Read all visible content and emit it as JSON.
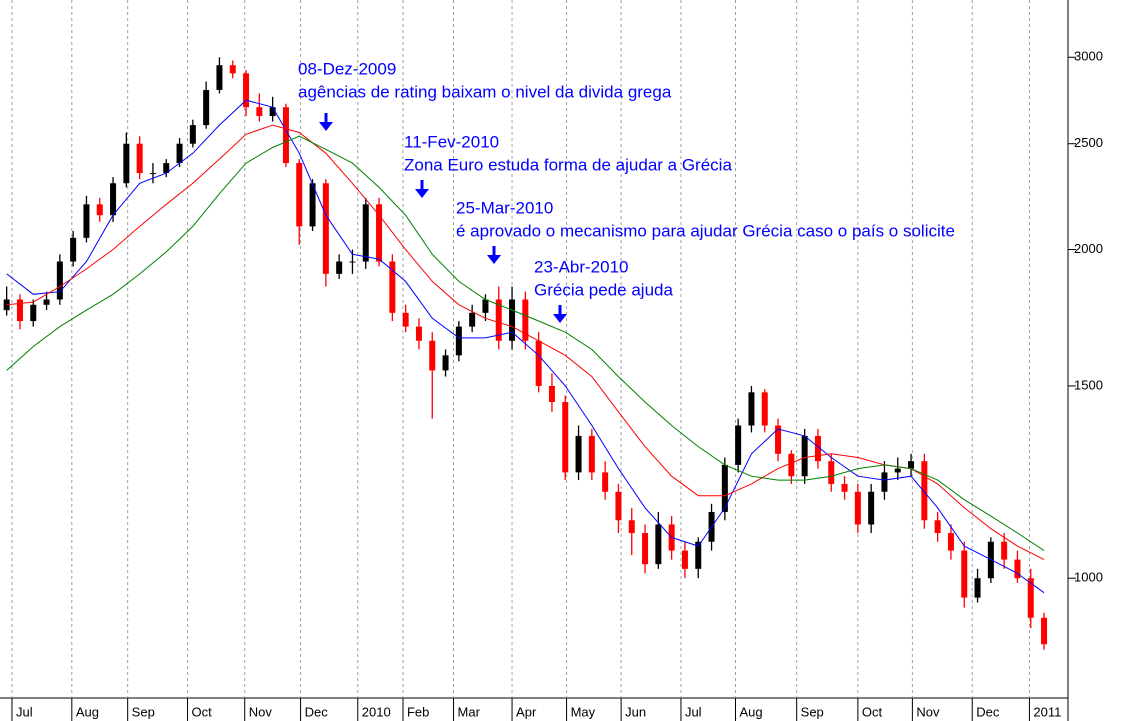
{
  "chart_data": {
    "type": "candlestick",
    "x": [
      0,
      1,
      2,
      3,
      4,
      5,
      6,
      7,
      8,
      9,
      10,
      11,
      12,
      13,
      14,
      15,
      16,
      17,
      18,
      19,
      20,
      21,
      22,
      23,
      24,
      25,
      26,
      27,
      28,
      29,
      30,
      31,
      32,
      33,
      34,
      35,
      36,
      37,
      38,
      39,
      40,
      41,
      42,
      43,
      44,
      45,
      46,
      47,
      48,
      49,
      50,
      51,
      52,
      53,
      54,
      55,
      56,
      57,
      58,
      59,
      60,
      61,
      62,
      63,
      64,
      65,
      66,
      67,
      68,
      69,
      70,
      71,
      72,
      73,
      74,
      75,
      76,
      77,
      78
    ],
    "open": [
      1760,
      1800,
      1720,
      1780,
      1800,
      1950,
      2050,
      2200,
      2150,
      2300,
      2500,
      2350,
      2350,
      2400,
      2500,
      2600,
      2800,
      2950,
      2900,
      2700,
      2650,
      2700,
      2400,
      2100,
      2300,
      1900,
      1950,
      1950,
      2200,
      1950,
      1750,
      1700,
      1650,
      1550,
      1600,
      1700,
      1750,
      1800,
      1650,
      1800,
      1650,
      1500,
      1450,
      1250,
      1350,
      1250,
      1200,
      1130,
      1100,
      1030,
      1120,
      1060,
      1020,
      1080,
      1150,
      1270,
      1380,
      1480,
      1380,
      1300,
      1240,
      1350,
      1280,
      1220,
      1200,
      1120,
      1200,
      1250,
      1260,
      1280,
      1130,
      1100,
      1060,
      960,
      1000,
      1080,
      1040,
      1000,
      920
    ],
    "high": [
      1850,
      1820,
      1800,
      1830,
      1980,
      2080,
      2240,
      2230,
      2330,
      2560,
      2540,
      2400,
      2420,
      2530,
      2630,
      2850,
      3000,
      2980,
      2920,
      2780,
      2760,
      2720,
      2420,
      2320,
      2320,
      1980,
      2000,
      2230,
      2230,
      1980,
      1780,
      1730,
      1680,
      1620,
      1720,
      1780,
      1820,
      1850,
      1850,
      1830,
      1680,
      1540,
      1470,
      1380,
      1370,
      1280,
      1220,
      1160,
      1120,
      1150,
      1140,
      1080,
      1090,
      1170,
      1290,
      1400,
      1500,
      1490,
      1400,
      1310,
      1370,
      1370,
      1300,
      1240,
      1220,
      1220,
      1280,
      1290,
      1300,
      1300,
      1150,
      1120,
      1080,
      1020,
      1090,
      1100,
      1060,
      1020,
      930
    ],
    "low": [
      1740,
      1690,
      1700,
      1760,
      1780,
      1930,
      2030,
      2120,
      2120,
      2280,
      2320,
      2300,
      2330,
      2380,
      2480,
      2580,
      2780,
      2870,
      2650,
      2620,
      2620,
      2380,
      2020,
      2080,
      1850,
      1880,
      1900,
      1920,
      1930,
      1720,
      1680,
      1620,
      1400,
      1530,
      1580,
      1680,
      1720,
      1620,
      1620,
      1620,
      1480,
      1420,
      1230,
      1230,
      1230,
      1180,
      1100,
      1050,
      1010,
      1020,
      1040,
      1000,
      1000,
      1060,
      1130,
      1250,
      1360,
      1360,
      1280,
      1220,
      1220,
      1260,
      1200,
      1180,
      1100,
      1100,
      1180,
      1230,
      1240,
      1110,
      1080,
      1040,
      940,
      950,
      990,
      1020,
      990,
      900,
      860
    ],
    "close": [
      1800,
      1720,
      1780,
      1800,
      1950,
      2050,
      2200,
      2150,
      2300,
      2500,
      2350,
      2350,
      2400,
      2500,
      2600,
      2800,
      2950,
      2900,
      2700,
      2650,
      2700,
      2400,
      2100,
      2300,
      1900,
      1950,
      1950,
      2200,
      1950,
      1750,
      1700,
      1650,
      1550,
      1600,
      1700,
      1750,
      1800,
      1650,
      1800,
      1650,
      1500,
      1450,
      1250,
      1350,
      1250,
      1200,
      1130,
      1100,
      1030,
      1120,
      1060,
      1020,
      1080,
      1150,
      1270,
      1380,
      1480,
      1380,
      1300,
      1240,
      1350,
      1280,
      1220,
      1200,
      1120,
      1200,
      1250,
      1260,
      1280,
      1130,
      1100,
      1060,
      960,
      1000,
      1080,
      1040,
      1000,
      920,
      870
    ],
    "up_color": "#000000",
    "down_color": "#ff0000",
    "series": [
      {
        "color": "#0000ff",
        "x": [
          0,
          2,
          4,
          6,
          8,
          10,
          12,
          14,
          16,
          18,
          20,
          22,
          24,
          26,
          28,
          30,
          32,
          34,
          36,
          38,
          40,
          42,
          44,
          46,
          48,
          50,
          52,
          54,
          56,
          58,
          60,
          62,
          64,
          66,
          68,
          70,
          72,
          74,
          76,
          78
        ],
        "values": [
          1900,
          1820,
          1830,
          1950,
          2150,
          2300,
          2350,
          2450,
          2600,
          2740,
          2700,
          2450,
          2150,
          1980,
          1960,
          1870,
          1730,
          1660,
          1660,
          1680,
          1600,
          1500,
          1380,
          1260,
          1160,
          1090,
          1070,
          1160,
          1300,
          1370,
          1350,
          1290,
          1240,
          1230,
          1240,
          1160,
          1070,
          1040,
          1010,
          970
        ]
      },
      {
        "color": "#ff0000",
        "x": [
          0,
          2,
          4,
          6,
          8,
          10,
          12,
          14,
          16,
          18,
          20,
          22,
          24,
          26,
          28,
          30,
          32,
          34,
          36,
          38,
          40,
          42,
          44,
          46,
          48,
          50,
          52,
          54,
          56,
          58,
          60,
          62,
          64,
          66,
          68,
          70,
          72,
          74,
          76,
          78
        ],
        "values": [
          1780,
          1790,
          1850,
          1920,
          2000,
          2100,
          2200,
          2300,
          2420,
          2550,
          2600,
          2560,
          2450,
          2300,
          2150,
          2000,
          1870,
          1780,
          1730,
          1700,
          1650,
          1600,
          1530,
          1420,
          1320,
          1240,
          1190,
          1190,
          1220,
          1260,
          1290,
          1300,
          1290,
          1270,
          1260,
          1220,
          1160,
          1110,
          1070,
          1040
        ]
      },
      {
        "color": "#008000",
        "x": [
          0,
          2,
          4,
          6,
          8,
          10,
          12,
          14,
          16,
          18,
          20,
          22,
          24,
          26,
          28,
          30,
          32,
          34,
          36,
          38,
          40,
          42,
          44,
          46,
          48,
          50,
          52,
          54,
          56,
          58,
          60,
          62,
          64,
          66,
          68,
          70,
          72,
          74,
          76,
          78
        ],
        "values": [
          1550,
          1630,
          1700,
          1760,
          1820,
          1900,
          1990,
          2100,
          2250,
          2400,
          2480,
          2540,
          2470,
          2400,
          2280,
          2150,
          1980,
          1870,
          1800,
          1760,
          1720,
          1680,
          1620,
          1530,
          1450,
          1380,
          1320,
          1270,
          1240,
          1230,
          1230,
          1240,
          1260,
          1270,
          1260,
          1230,
          1180,
          1140,
          1100,
          1060
        ]
      }
    ],
    "xlim": [
      0,
      80
    ],
    "xticks": [
      {
        "value": 0.9,
        "label": "Jul"
      },
      {
        "value": 5.4,
        "label": "Aug"
      },
      {
        "value": 9.6,
        "label": "Sep"
      },
      {
        "value": 14.1,
        "label": "Oct"
      },
      {
        "value": 18.4,
        "label": "Nov"
      },
      {
        "value": 22.6,
        "label": "Dec"
      },
      {
        "value": 26.9,
        "label": "2010"
      },
      {
        "value": 30.3,
        "label": "Feb"
      },
      {
        "value": 34.1,
        "label": "Mar"
      },
      {
        "value": 38.5,
        "label": "Apr"
      },
      {
        "value": 42.6,
        "label": "May"
      },
      {
        "value": 46.7,
        "label": "Jun"
      },
      {
        "value": 51.2,
        "label": "Jul"
      },
      {
        "value": 55.3,
        "label": "Aug"
      },
      {
        "value": 59.9,
        "label": "Sep"
      },
      {
        "value": 64.5,
        "label": "Oct"
      },
      {
        "value": 68.6,
        "label": "Nov"
      },
      {
        "value": 73.1,
        "label": "Dec"
      },
      {
        "value": 77.4,
        "label": "2011"
      }
    ],
    "ylim": [
      790,
      3385
    ],
    "yticks": [
      1000,
      1500,
      2000,
      2500,
      3000
    ],
    "log_scale": true,
    "grid": "x",
    "annotations": [
      {
        "date": "08-Dez-2009",
        "text": "agências de rating baixam o nivel da divida grega"
      },
      {
        "date": "11-Fev-2010",
        "text": "Zona Euro estuda forma de ajudar a Grécia"
      },
      {
        "date": "25-Mar-2010",
        "text": "é aprovado o mecanismo para ajudar Grécia caso o país o solicite"
      },
      {
        "date": "23-Abr-2010",
        "text": "Grécia pede ajuda"
      }
    ]
  }
}
